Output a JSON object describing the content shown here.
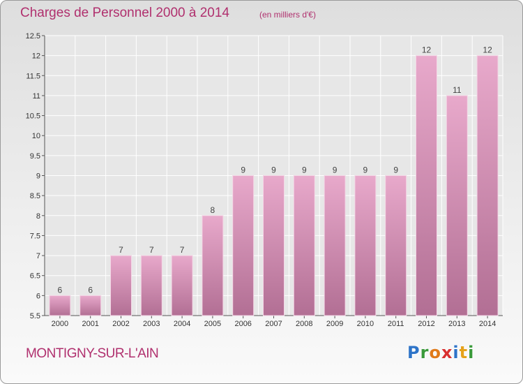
{
  "title": "Charges de Personnel 2000 à 2014",
  "subtitle": "(en milliers d'€)",
  "commune": "MONTIGNY-SUR-L'AIN",
  "logo": {
    "text": "Proxiti"
  },
  "colors": {
    "bar_light": "#e8a9cb",
    "bar_dark": "#b26f94",
    "text_accent": "#b0306e",
    "grid": "#ffffff"
  },
  "chart_data": {
    "type": "bar",
    "categories": [
      "2000",
      "2001",
      "2002",
      "2003",
      "2004",
      "2005",
      "2006",
      "2007",
      "2008",
      "2009",
      "2010",
      "2011",
      "2012",
      "2013",
      "2014"
    ],
    "values": [
      6,
      6,
      7,
      7,
      7,
      8,
      9,
      9,
      9,
      9,
      9,
      9,
      12,
      11,
      12
    ],
    "value_labels": [
      "6",
      "6",
      "7",
      "7",
      "7",
      "8",
      "9",
      "9",
      "9",
      "9",
      "9",
      "9",
      "12",
      "11",
      "12"
    ],
    "ylim": [
      5.5,
      12.5
    ],
    "yticks": [
      5.5,
      6,
      6.5,
      7,
      7.5,
      8,
      8.5,
      9,
      9.5,
      10,
      10.5,
      11,
      11.5,
      12,
      12.5
    ],
    "ytick_labels": [
      "5.5",
      "6",
      "6.5",
      "7",
      "7.5",
      "8",
      "8.5",
      "9",
      "9.5",
      "10",
      "10.5",
      "11",
      "11.5",
      "12",
      "12.5"
    ],
    "grid": true,
    "xlabel": "",
    "ylabel": ""
  }
}
